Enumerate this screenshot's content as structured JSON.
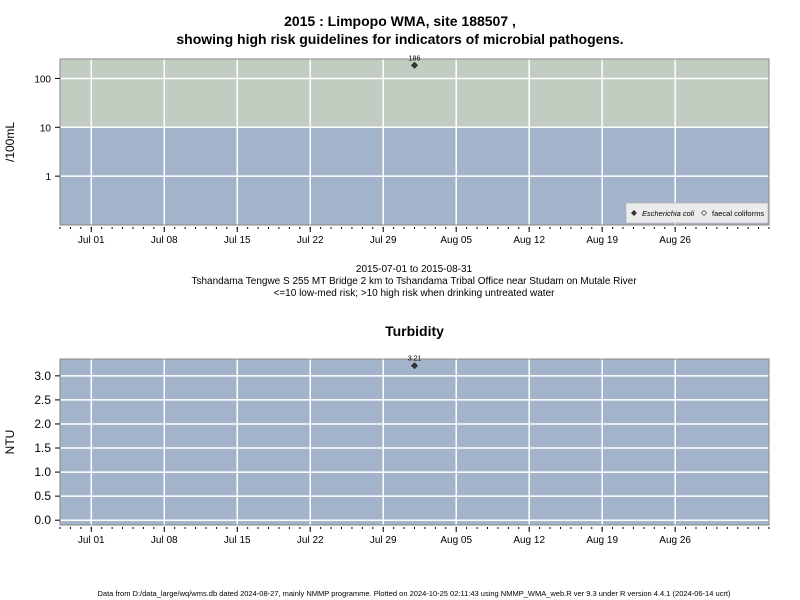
{
  "page": {
    "title_line1": "2015 : Limpopo WMA, site 188507 ,",
    "title_line2": "showing high risk guidelines for indicators of microbial pathogens.",
    "caption_line1": "2015-07-01 to 2015-08-31",
    "caption_line2": "Tshandama Tengwe S 255 MT Bridge 2 km to Tshandama Tribal Office near Studam on Mutale River",
    "caption_line3": "<=10 low-med risk; >10 high risk when drinking untreated water",
    "footer": "Data from D:/data_large/wq/wms.db dated 2024-08-27, mainly NMMP programme. Plotted on 2024-10-25 02:11:43 using NMMP_WMA_web.R ver 9.3 under R version 4.4.1 (2024-06-14 ucrt)"
  },
  "colors": {
    "low_risk_band": "#a2b3ca",
    "high_risk_band": "#c2cdc1",
    "grid": "#ffffff",
    "point": "#333333"
  },
  "chart_data": [
    {
      "type": "scatter",
      "title": "",
      "ylabel": "/100mL",
      "yscale": "log",
      "ylim": [
        0.1,
        250
      ],
      "yticks": [
        1,
        10,
        100
      ],
      "ytick_labels": [
        "1",
        "10",
        "100"
      ],
      "xlim": [
        "2015-06-28",
        "2015-09-04"
      ],
      "xticks": [
        "2015-07-01",
        "2015-07-08",
        "2015-07-15",
        "2015-07-22",
        "2015-07-29",
        "2015-08-05",
        "2015-08-12",
        "2015-08-19",
        "2015-08-26"
      ],
      "xtick_labels": [
        "Jul 01",
        "Jul 08",
        "Jul 15",
        "Jul 22",
        "Jul 29",
        "Aug 05",
        "Aug 12",
        "Aug 19",
        "Aug 26"
      ],
      "bands": [
        {
          "from": 0.1,
          "to": 10,
          "color": "#a2b3ca"
        },
        {
          "from": 10,
          "to": 250,
          "color": "#c2cdc1"
        }
      ],
      "series": [
        {
          "name": "Escherichia coli",
          "marker": "filled-diamond",
          "points": [
            {
              "x": "2015-08-01",
              "y": 186,
              "label": "186"
            }
          ]
        },
        {
          "name": "faecal coliforms",
          "marker": "open-diamond",
          "points": []
        }
      ],
      "legend": "bottom-right",
      "grid": true
    },
    {
      "type": "scatter",
      "title": "Turbidity",
      "ylabel": "NTU",
      "yscale": "linear",
      "ylim": [
        -0.1,
        3.35
      ],
      "yticks": [
        0,
        0.5,
        1,
        1.5,
        2,
        2.5,
        3
      ],
      "ytick_labels": [
        "0.0",
        "0.5",
        "1.0",
        "1.5",
        "2.0",
        "2.5",
        "3.0"
      ],
      "xlim": [
        "2015-06-28",
        "2015-09-04"
      ],
      "xticks": [
        "2015-07-01",
        "2015-07-08",
        "2015-07-15",
        "2015-07-22",
        "2015-07-29",
        "2015-08-05",
        "2015-08-12",
        "2015-08-19",
        "2015-08-26"
      ],
      "xtick_labels": [
        "Jul 01",
        "Jul 08",
        "Jul 15",
        "Jul 22",
        "Jul 29",
        "Aug 05",
        "Aug 12",
        "Aug 19",
        "Aug 26"
      ],
      "bands": [
        {
          "from": -0.1,
          "to": 3.35,
          "color": "#a2b3ca"
        }
      ],
      "series": [
        {
          "name": "Turbidity",
          "marker": "filled-diamond",
          "points": [
            {
              "x": "2015-08-01",
              "y": 3.21,
              "label": "3.21"
            }
          ]
        }
      ],
      "legend": "none",
      "grid": true
    }
  ]
}
